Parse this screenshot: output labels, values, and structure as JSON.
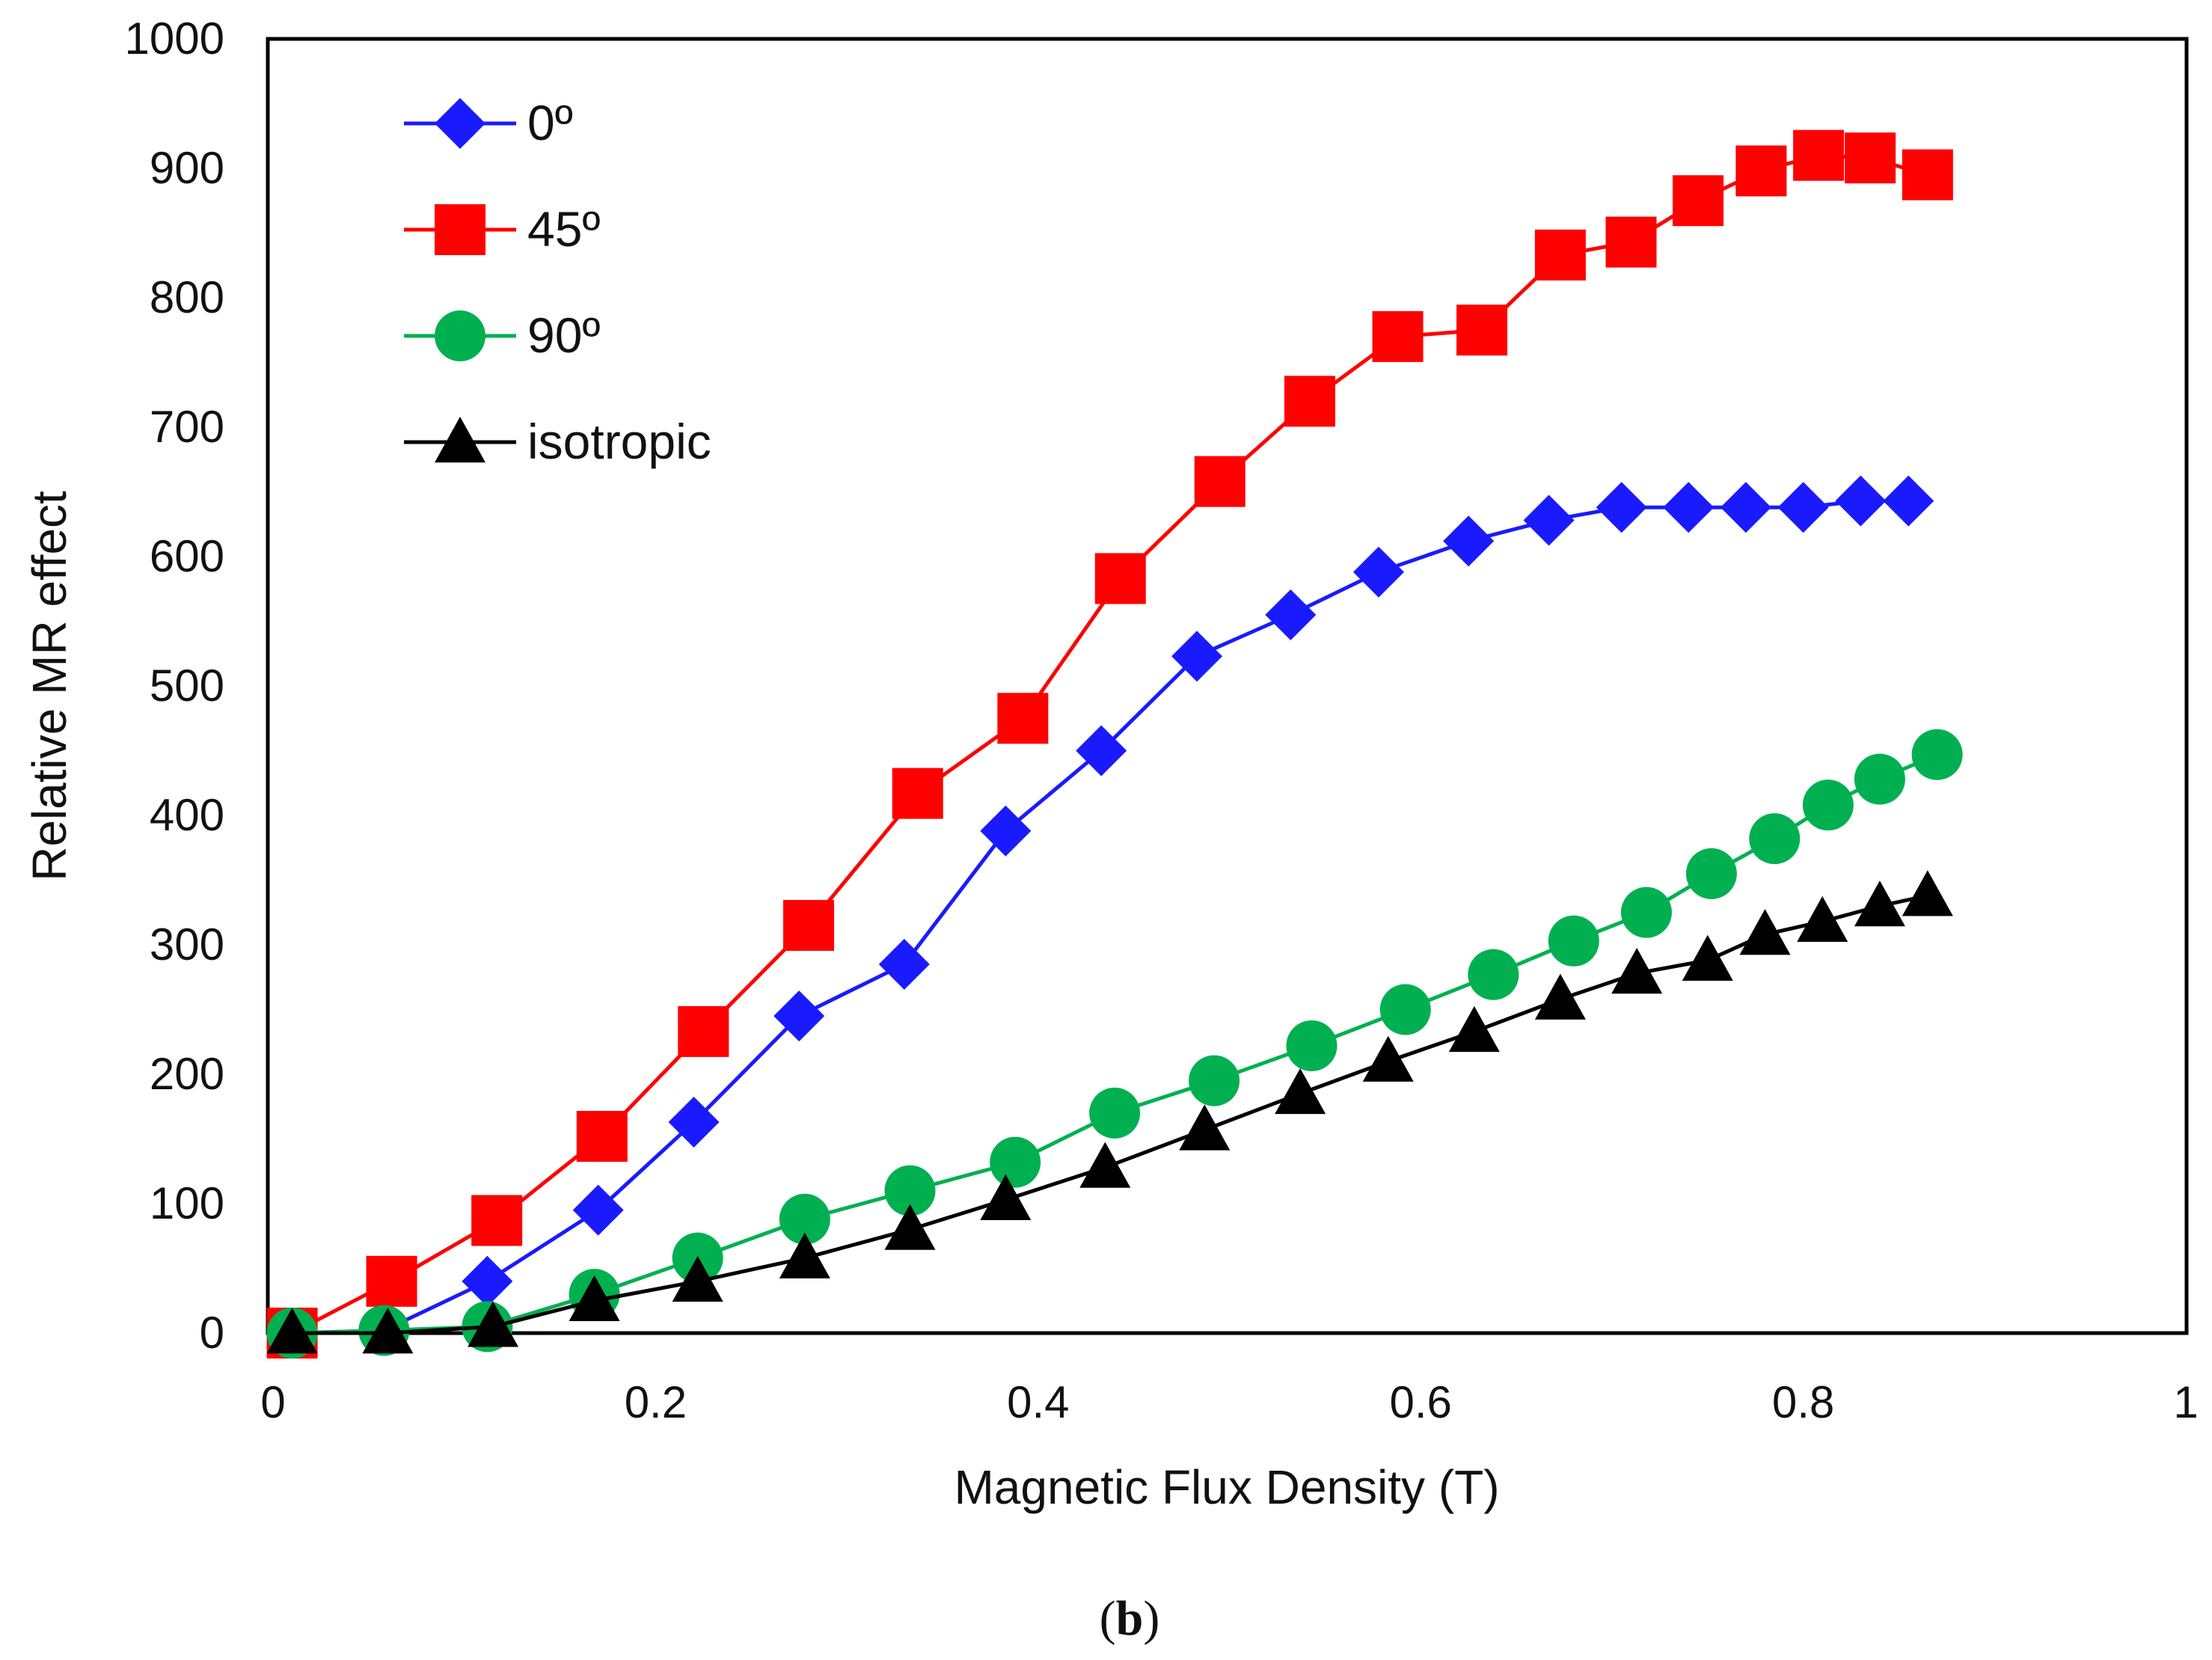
{
  "chart_data": {
    "type": "line",
    "title": "",
    "xlabel": "Magnetic Flux Density (T)",
    "ylabel": "Relative MR effect",
    "xlim": [
      0,
      1
    ],
    "ylim": [
      0,
      1000
    ],
    "xticks": [
      0,
      0.2,
      0.4,
      0.6,
      0.8,
      1
    ],
    "xtick_labels": [
      "0",
      "0.2",
      "0.4",
      "0.6",
      "0.8",
      "1"
    ],
    "yticks": [
      0,
      100,
      200,
      300,
      400,
      500,
      600,
      700,
      800,
      900,
      1000
    ],
    "ytick_labels": [
      "0",
      "100",
      "200",
      "300",
      "400",
      "500",
      "600",
      "700",
      "800",
      "900",
      "1000"
    ],
    "grid": false,
    "legend_position": "top-left",
    "series": [
      {
        "name": "0º",
        "color": "#1a1aff",
        "marker": "diamond",
        "x": [
          0.01,
          0.058,
          0.112,
          0.17,
          0.22,
          0.275,
          0.33,
          0.383,
          0.433,
          0.483,
          0.532,
          0.578,
          0.625,
          0.667,
          0.705,
          0.74,
          0.77,
          0.8,
          0.83,
          0.855
        ],
        "y": [
          0,
          2,
          40,
          95,
          163,
          245,
          285,
          388,
          450,
          523,
          555,
          588,
          612,
          628,
          638,
          638,
          638,
          638,
          643,
          643
        ]
      },
      {
        "name": "45º",
        "color": "#ff0000",
        "marker": "square",
        "x": [
          0.01,
          0.062,
          0.117,
          0.172,
          0.225,
          0.28,
          0.337,
          0.392,
          0.443,
          0.495,
          0.542,
          0.588,
          0.632,
          0.673,
          0.71,
          0.745,
          0.778,
          0.808,
          0.835,
          0.865
        ],
        "y": [
          0,
          40,
          87,
          152,
          233,
          315,
          417,
          475,
          583,
          658,
          720,
          770,
          775,
          833,
          843,
          875,
          898,
          910,
          908,
          895
        ]
      },
      {
        "name": "90º",
        "color": "#00b050",
        "marker": "circle",
        "x": [
          0.01,
          0.058,
          0.112,
          0.168,
          0.222,
          0.278,
          0.333,
          0.388,
          0.44,
          0.492,
          0.543,
          0.592,
          0.638,
          0.68,
          0.718,
          0.752,
          0.785,
          0.813,
          0.84,
          0.87
        ],
        "y": [
          0,
          2,
          5,
          30,
          58,
          88,
          110,
          132,
          170,
          195,
          222,
          250,
          277,
          303,
          325,
          355,
          382,
          408,
          428,
          447
        ]
      },
      {
        "name": "isotropic",
        "color": "#000000",
        "marker": "triangle",
        "x": [
          0.01,
          0.06,
          0.115,
          0.168,
          0.222,
          0.278,
          0.333,
          0.383,
          0.435,
          0.487,
          0.537,
          0.583,
          0.628,
          0.673,
          0.713,
          0.75,
          0.78,
          0.81,
          0.84,
          0.865
        ],
        "y": [
          0,
          0,
          5,
          25,
          40,
          58,
          80,
          103,
          128,
          157,
          185,
          210,
          233,
          258,
          278,
          288,
          308,
          318,
          330,
          338
        ]
      }
    ]
  },
  "caption": {
    "open": "(",
    "letter": "b",
    "close": ")"
  }
}
